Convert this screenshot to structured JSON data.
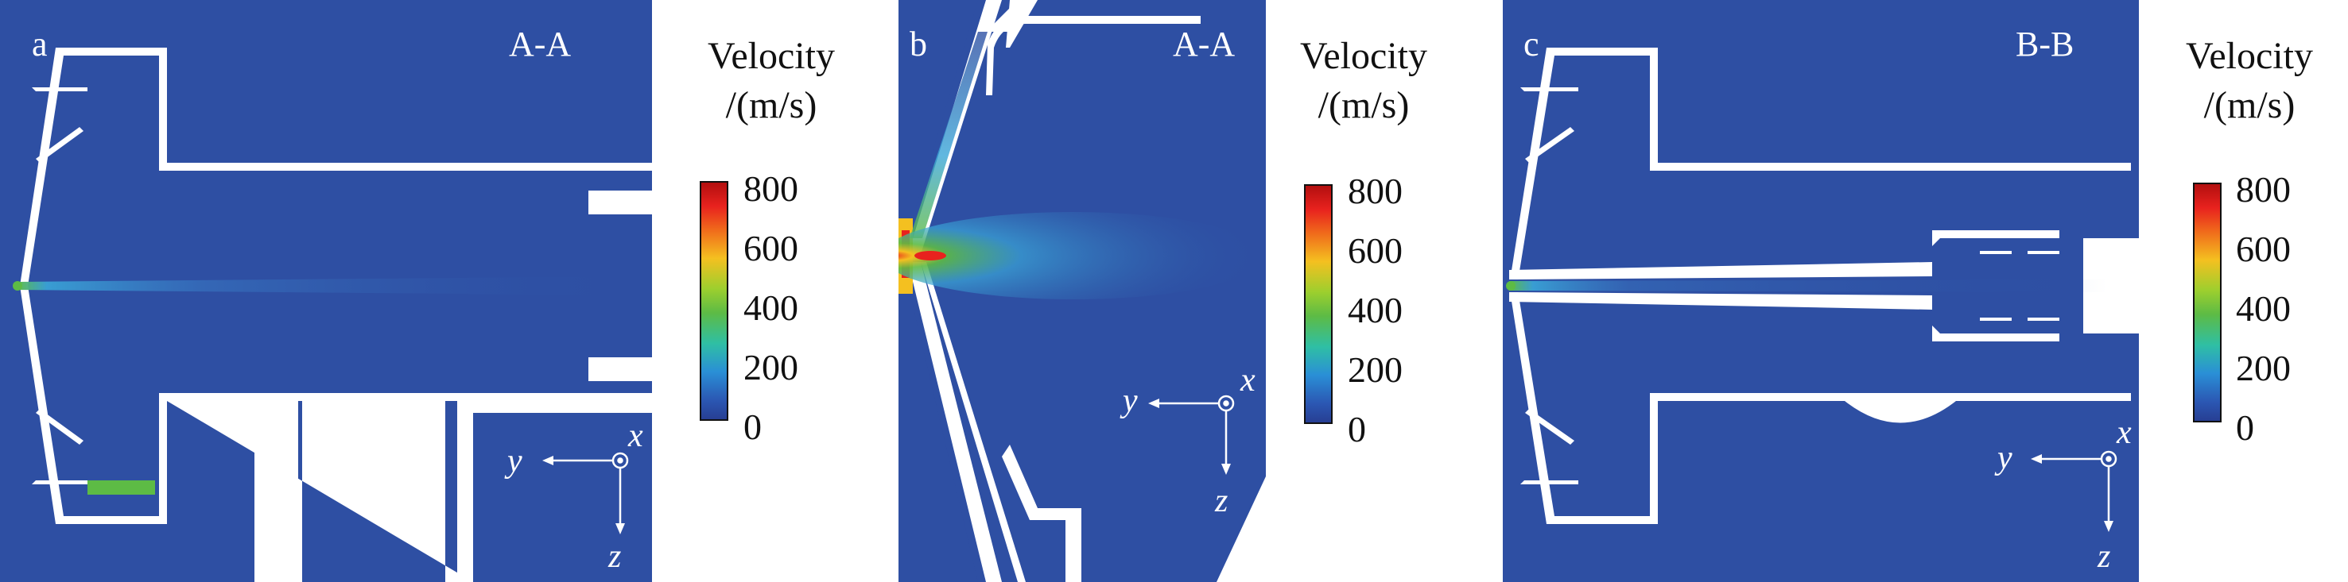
{
  "colors": {
    "domain": "#2e4fa3",
    "gap": "#ffffff",
    "jet_core": "#e8221e",
    "jet_mid": "#f4c020",
    "jet_low": "#5dbb45",
    "jet_outer": "#3aa6d8"
  },
  "panels": [
    {
      "letter": "a",
      "section": "A-A",
      "legend_title_line1": "Velocity",
      "legend_title_line2": "/(m/s)",
      "ticks": [
        "800",
        "600",
        "400",
        "200",
        "0"
      ],
      "axes": {
        "horizontal": "y",
        "vertical": "z",
        "out_of_plane": "x"
      }
    },
    {
      "letter": "b",
      "section": "A-A",
      "legend_title_line1": "Velocity",
      "legend_title_line2": "/(m/s)",
      "ticks": [
        "800",
        "600",
        "400",
        "200",
        "0"
      ],
      "axes": {
        "horizontal": "y",
        "vertical": "z",
        "out_of_plane": "x"
      }
    },
    {
      "letter": "c",
      "section": "B-B",
      "legend_title_line1": "Velocity",
      "legend_title_line2": "/(m/s)",
      "ticks": [
        "800",
        "600",
        "400",
        "200",
        "0"
      ],
      "axes": {
        "horizontal": "y",
        "vertical": "z",
        "out_of_plane": "x"
      }
    }
  ]
}
